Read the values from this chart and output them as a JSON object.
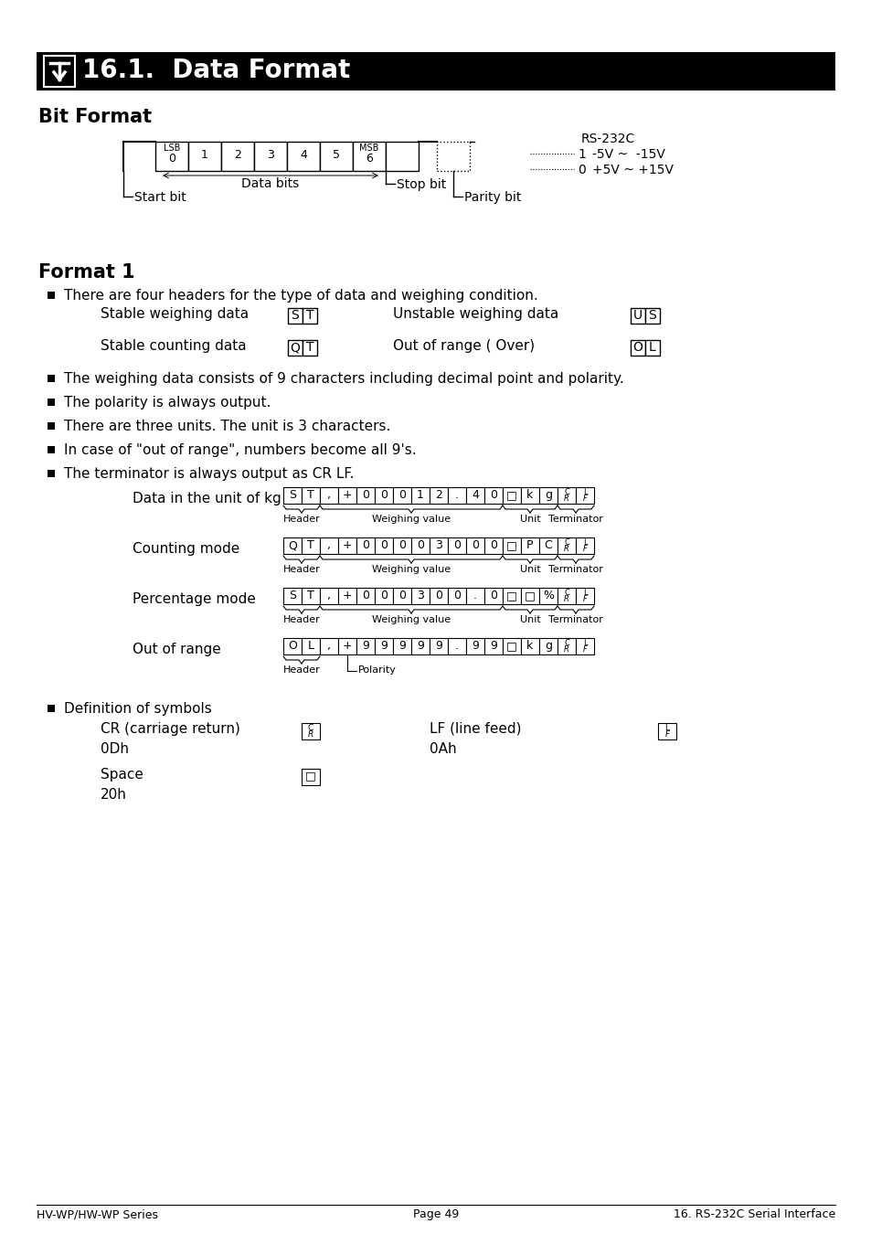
{
  "title": "16.1.  Data Format",
  "bg_color": "#ffffff",
  "title_bar_color": "#000000",
  "title_text_color": "#ffffff",
  "section1": "Bit Format",
  "section2": "Format 1",
  "rs232c_label": "RS-232C",
  "format1_bullets": [
    "There are four headers for the type of data and weighing condition.",
    "The weighing data consists of 9 characters including decimal point and polarity.",
    "The polarity is always output.",
    "There are three units. The unit is 3 characters.",
    "In case of \"out of range\", numbers become all 9's.",
    "The terminator is always output as CR LF."
  ],
  "footer_left": "HV-WP/HW-WP Series",
  "footer_center": "Page 49",
  "footer_right": "16. RS-232C Serial Interface"
}
